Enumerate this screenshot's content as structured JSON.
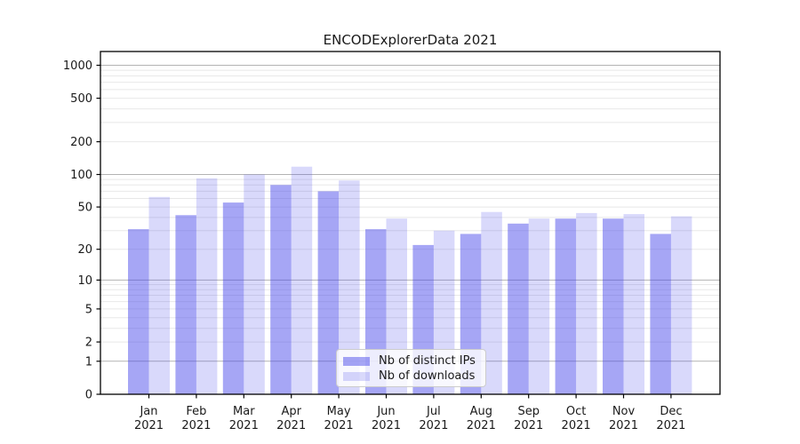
{
  "title": "ENCODExplorerData 2021",
  "chart_data": {
    "type": "bar",
    "title": "ENCODExplorerData 2021",
    "categories": [
      "Jan",
      "Feb",
      "Mar",
      "Apr",
      "May",
      "Jun",
      "Jul",
      "Aug",
      "Sep",
      "Oct",
      "Nov",
      "Dec"
    ],
    "category_year": "2021",
    "series": [
      {
        "name": "Nb of distinct IPs",
        "color": "rgba(70,70,235,0.48)",
        "values": [
          31,
          42,
          55,
          80,
          70,
          31,
          22,
          28,
          35,
          39,
          39,
          28
        ]
      },
      {
        "name": "Nb of downloads",
        "color": "rgba(70,70,235,0.205)",
        "values": [
          62,
          92,
          100,
          118,
          88,
          39,
          30,
          45,
          39,
          44,
          43,
          41
        ]
      }
    ],
    "yticks": [
      0,
      1,
      2,
      5,
      10,
      20,
      50,
      100,
      200,
      500,
      1000
    ],
    "minor_grid_values": [
      3,
      4,
      6,
      7,
      8,
      9,
      30,
      40,
      60,
      70,
      80,
      90,
      300,
      400,
      600,
      700,
      800,
      900
    ],
    "decade_grid_values": [
      1,
      10,
      100,
      1000
    ],
    "yscale": "log10(1+y)",
    "ylim": [
      0,
      1340
    ],
    "grid": "horizontal",
    "legend_position": "lower center",
    "frame_color": "#000000",
    "major_grid_color": "#b3b3b3",
    "minor_grid_color": "#e8e8e8"
  }
}
